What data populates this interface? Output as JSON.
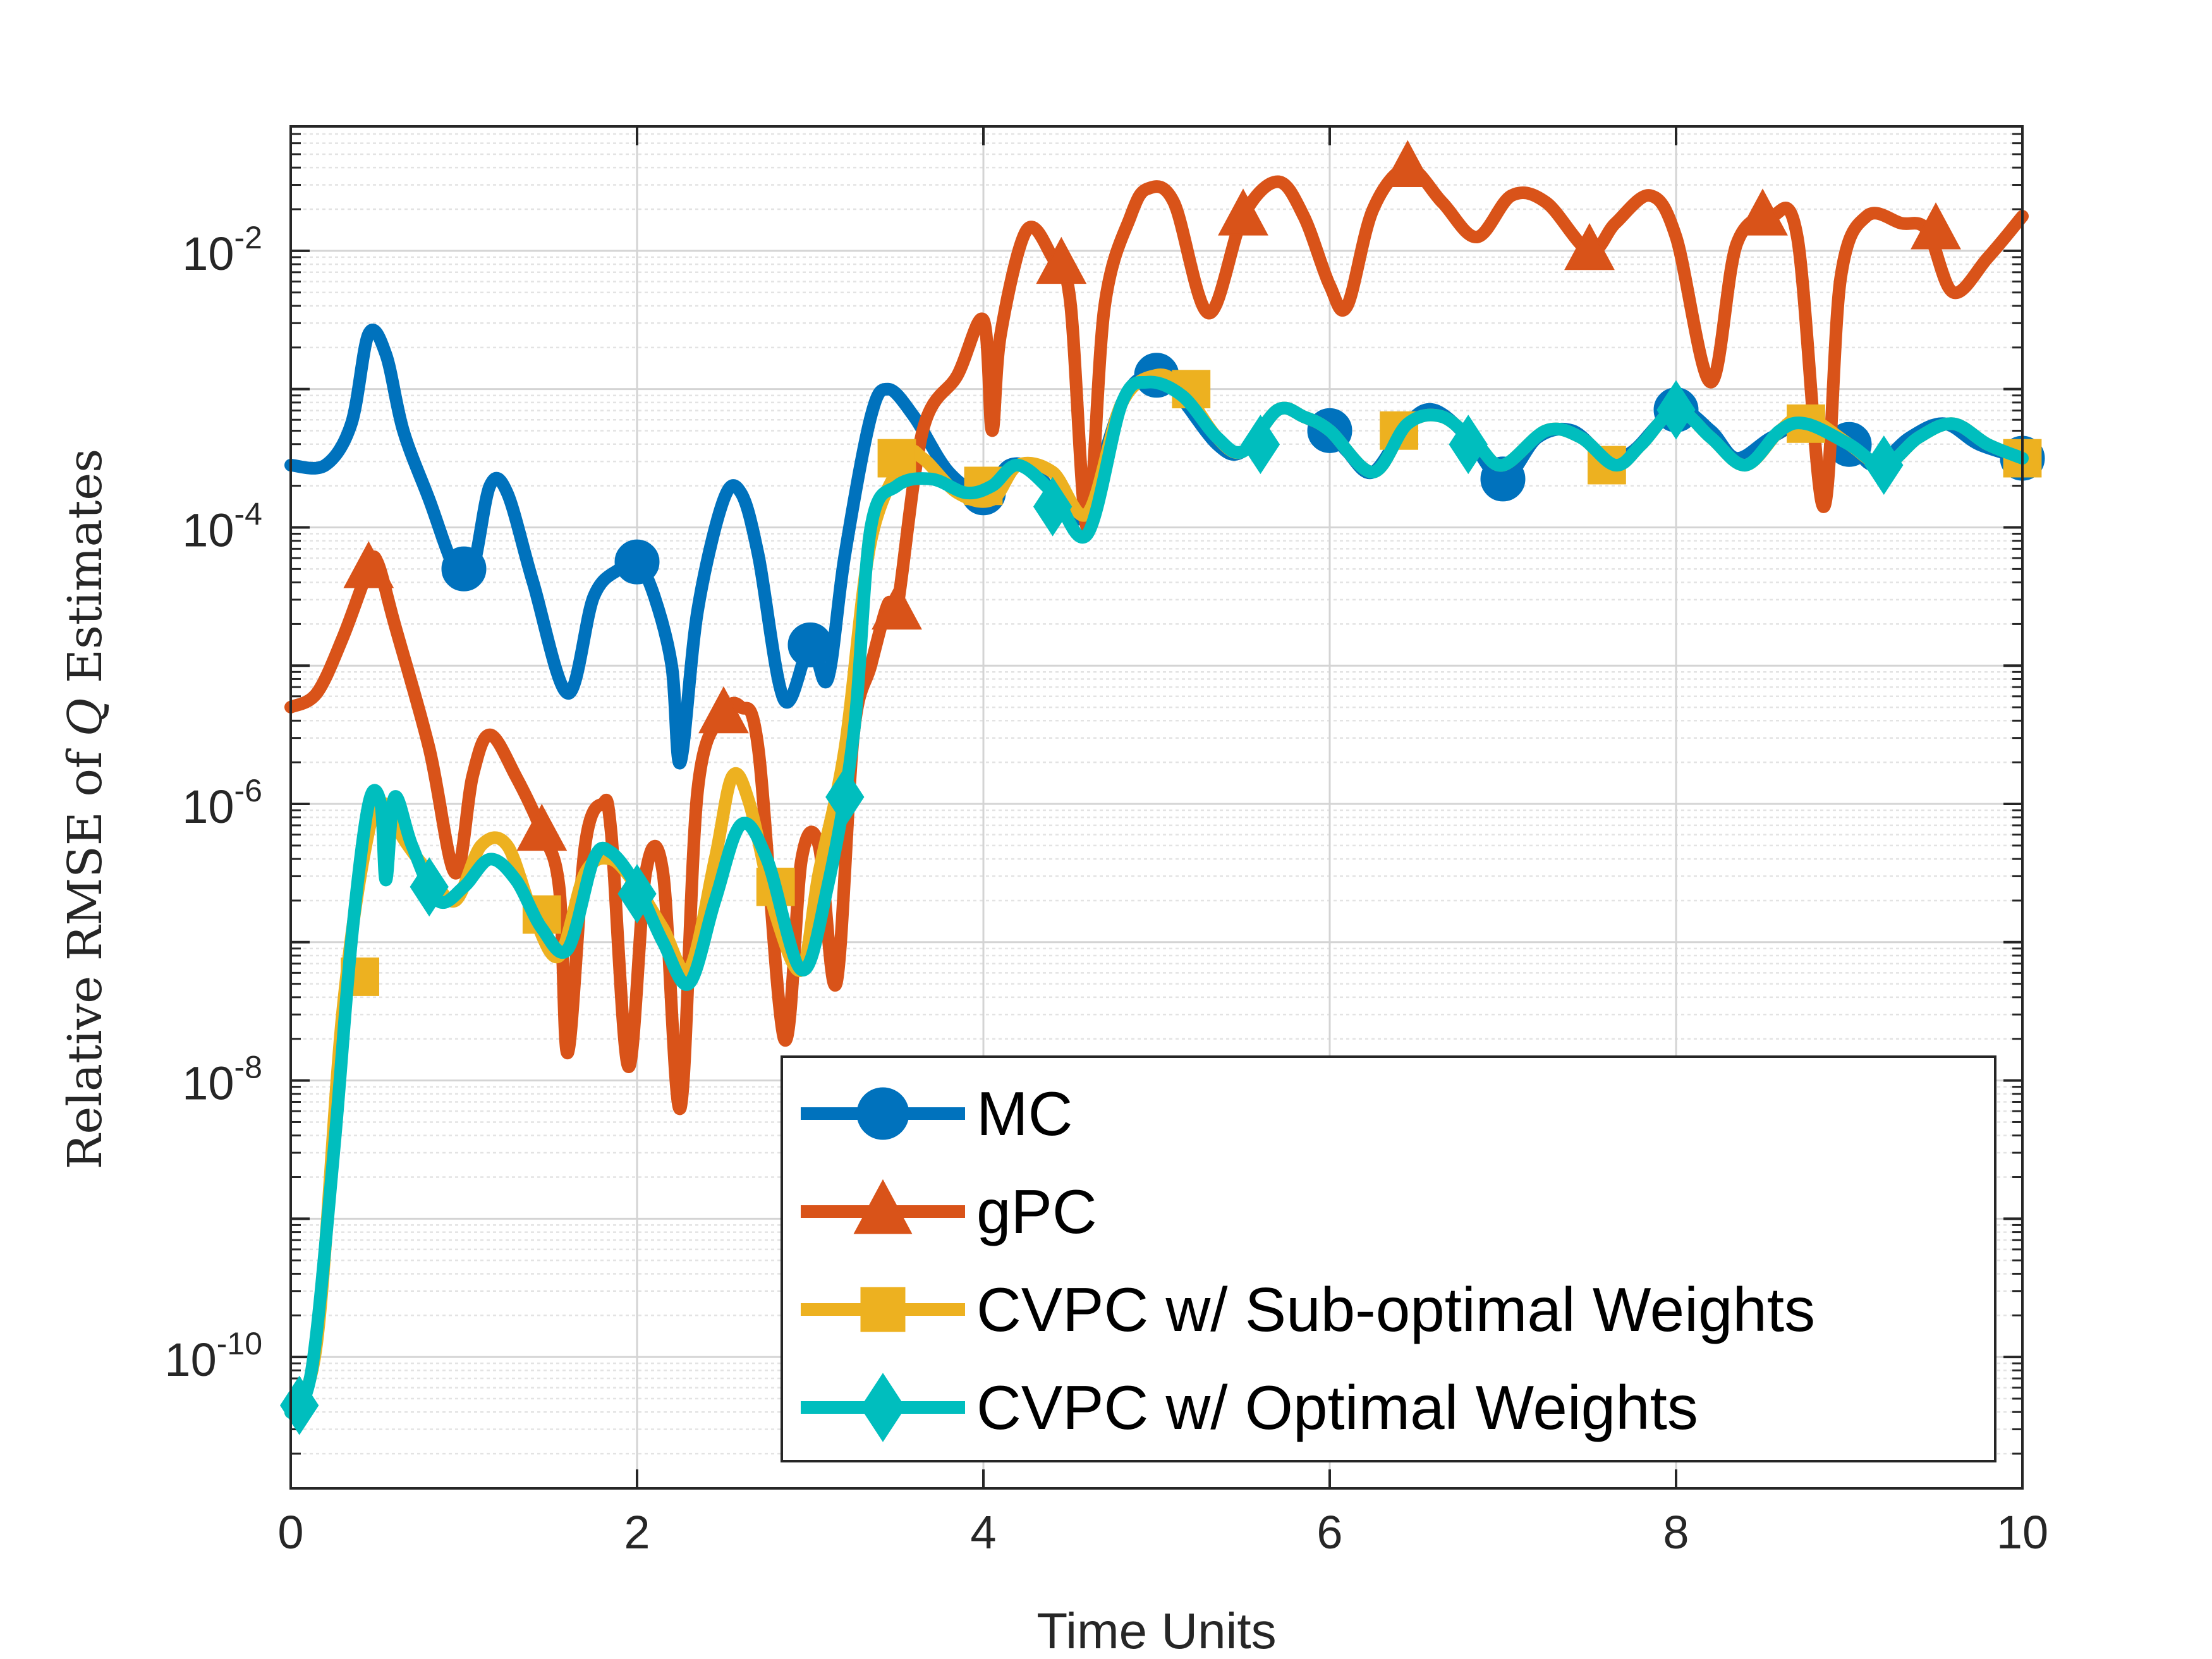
{
  "chart_data": {
    "type": "line",
    "xlabel": "Time Units",
    "ylabel": {
      "prefix": "Relative RMSE of ",
      "symbol": "Q",
      "suffix": " Estimates"
    },
    "x_ticks": [
      0,
      2,
      4,
      6,
      8,
      10
    ],
    "y_ticks": [
      {
        "base": "10",
        "exp": "-10",
        "value": 1e-10
      },
      {
        "base": "10",
        "exp": "-8",
        "value": 1e-08
      },
      {
        "base": "10",
        "exp": "-6",
        "value": 1e-06
      },
      {
        "base": "10",
        "exp": "-4",
        "value": 0.0001
      },
      {
        "base": "10",
        "exp": "-2",
        "value": 0.01
      }
    ],
    "xlim": [
      0,
      10
    ],
    "ylim_log10": [
      -10.95,
      -1.1
    ],
    "grid": true,
    "legend_position": "bottom-right",
    "series": [
      {
        "name": "MC",
        "color": "#0072BD",
        "marker": "circle",
        "points": [
          [
            0,
            -3.55
          ],
          [
            0.2,
            -3.55
          ],
          [
            0.35,
            -3.25
          ],
          [
            0.45,
            -2.6
          ],
          [
            0.55,
            -2.75
          ],
          [
            0.65,
            -3.3
          ],
          [
            0.8,
            -3.8
          ],
          [
            0.95,
            -4.3
          ],
          [
            1.05,
            -4.3
          ],
          [
            1.15,
            -3.7
          ],
          [
            1.25,
            -3.75
          ],
          [
            1.4,
            -4.4
          ],
          [
            1.6,
            -5.2
          ],
          [
            1.75,
            -4.5
          ],
          [
            1.9,
            -4.3
          ],
          [
            2.0,
            -4.25
          ],
          [
            2.1,
            -4.5
          ],
          [
            2.2,
            -5.0
          ],
          [
            2.25,
            -5.7
          ],
          [
            2.35,
            -4.6
          ],
          [
            2.5,
            -3.8
          ],
          [
            2.6,
            -3.75
          ],
          [
            2.7,
            -4.2
          ],
          [
            2.85,
            -5.25
          ],
          [
            3.0,
            -4.85
          ],
          [
            3.1,
            -5.1
          ],
          [
            3.2,
            -4.2
          ],
          [
            3.35,
            -3.2
          ],
          [
            3.45,
            -3.0
          ],
          [
            3.6,
            -3.2
          ],
          [
            3.8,
            -3.6
          ],
          [
            4.0,
            -3.75
          ],
          [
            4.15,
            -3.55
          ],
          [
            4.3,
            -3.6
          ],
          [
            4.5,
            -3.9
          ],
          [
            4.6,
            -3.85
          ],
          [
            4.8,
            -3.1
          ],
          [
            4.95,
            -2.9
          ],
          [
            5.1,
            -3.0
          ],
          [
            5.35,
            -3.4
          ],
          [
            5.5,
            -3.45
          ],
          [
            5.7,
            -3.15
          ],
          [
            5.85,
            -3.2
          ],
          [
            6.0,
            -3.3
          ],
          [
            6.1,
            -3.45
          ],
          [
            6.25,
            -3.6
          ],
          [
            6.45,
            -3.25
          ],
          [
            6.6,
            -3.15
          ],
          [
            6.8,
            -3.35
          ],
          [
            7.0,
            -3.65
          ],
          [
            7.2,
            -3.35
          ],
          [
            7.4,
            -3.3
          ],
          [
            7.6,
            -3.5
          ],
          [
            7.75,
            -3.45
          ],
          [
            8.0,
            -3.15
          ],
          [
            8.2,
            -3.3
          ],
          [
            8.35,
            -3.5
          ],
          [
            8.55,
            -3.35
          ],
          [
            8.75,
            -3.25
          ],
          [
            9.0,
            -3.4
          ],
          [
            9.15,
            -3.55
          ],
          [
            9.35,
            -3.35
          ],
          [
            9.55,
            -3.25
          ],
          [
            9.75,
            -3.4
          ],
          [
            10.0,
            -3.5
          ]
        ],
        "marker_points": [
          [
            1.0,
            -4.3
          ],
          [
            2.0,
            -4.25
          ],
          [
            3.0,
            -4.85
          ],
          [
            4.0,
            -3.75
          ],
          [
            5.0,
            -2.9
          ],
          [
            6.0,
            -3.3
          ],
          [
            7.0,
            -3.65
          ],
          [
            8.0,
            -3.15
          ],
          [
            9.0,
            -3.4
          ],
          [
            10.0,
            -3.5
          ]
        ]
      },
      {
        "name": "gPC",
        "color": "#D95319",
        "marker": "triangle",
        "points": [
          [
            0,
            -5.3
          ],
          [
            0.15,
            -5.2
          ],
          [
            0.3,
            -4.8
          ],
          [
            0.45,
            -4.3
          ],
          [
            0.5,
            -4.25
          ],
          [
            0.6,
            -4.7
          ],
          [
            0.8,
            -5.6
          ],
          [
            0.95,
            -6.5
          ],
          [
            1.05,
            -5.8
          ],
          [
            1.15,
            -5.5
          ],
          [
            1.3,
            -5.8
          ],
          [
            1.45,
            -6.2
          ],
          [
            1.55,
            -6.6
          ],
          [
            1.6,
            -7.8
          ],
          [
            1.7,
            -6.3
          ],
          [
            1.8,
            -6.0
          ],
          [
            1.85,
            -6.2
          ],
          [
            1.95,
            -7.9
          ],
          [
            2.05,
            -6.5
          ],
          [
            2.15,
            -6.5
          ],
          [
            2.25,
            -8.2
          ],
          [
            2.35,
            -5.9
          ],
          [
            2.5,
            -5.35
          ],
          [
            2.6,
            -5.3
          ],
          [
            2.7,
            -5.6
          ],
          [
            2.85,
            -7.7
          ],
          [
            2.95,
            -6.4
          ],
          [
            3.05,
            -6.3
          ],
          [
            3.15,
            -7.3
          ],
          [
            3.25,
            -5.5
          ],
          [
            3.35,
            -5.0
          ],
          [
            3.45,
            -4.55
          ],
          [
            3.5,
            -4.6
          ],
          [
            3.65,
            -3.3
          ],
          [
            3.85,
            -2.9
          ],
          [
            4.0,
            -2.5
          ],
          [
            4.05,
            -3.3
          ],
          [
            4.1,
            -2.6
          ],
          [
            4.25,
            -1.85
          ],
          [
            4.4,
            -2.05
          ],
          [
            4.5,
            -2.35
          ],
          [
            4.6,
            -4.0
          ],
          [
            4.7,
            -2.4
          ],
          [
            4.85,
            -1.75
          ],
          [
            4.95,
            -1.55
          ],
          [
            5.1,
            -1.65
          ],
          [
            5.3,
            -2.45
          ],
          [
            5.5,
            -1.75
          ],
          [
            5.7,
            -1.5
          ],
          [
            5.85,
            -1.75
          ],
          [
            6.0,
            -2.25
          ],
          [
            6.1,
            -2.4
          ],
          [
            6.25,
            -1.7
          ],
          [
            6.45,
            -1.4
          ],
          [
            6.65,
            -1.65
          ],
          [
            6.85,
            -1.9
          ],
          [
            7.05,
            -1.6
          ],
          [
            7.25,
            -1.65
          ],
          [
            7.5,
            -2.0
          ],
          [
            7.65,
            -1.8
          ],
          [
            7.85,
            -1.6
          ],
          [
            8.0,
            -1.9
          ],
          [
            8.2,
            -2.95
          ],
          [
            8.35,
            -1.95
          ],
          [
            8.55,
            -1.75
          ],
          [
            8.7,
            -1.9
          ],
          [
            8.85,
            -3.85
          ],
          [
            8.95,
            -2.2
          ],
          [
            9.1,
            -1.75
          ],
          [
            9.3,
            -1.8
          ],
          [
            9.45,
            -1.85
          ],
          [
            9.6,
            -2.3
          ],
          [
            9.8,
            -2.05
          ],
          [
            10.0,
            -1.75
          ]
        ],
        "marker_points": [
          [
            0.45,
            -4.3
          ],
          [
            1.45,
            -6.2
          ],
          [
            2.5,
            -5.35
          ],
          [
            3.5,
            -4.6
          ],
          [
            4.45,
            -2.1
          ],
          [
            5.5,
            -1.75
          ],
          [
            6.45,
            -1.4
          ],
          [
            7.5,
            -2.0
          ],
          [
            8.5,
            -1.75
          ],
          [
            9.5,
            -1.85
          ]
        ]
      },
      {
        "name": "CVPC w/ Sub-optimal Weights",
        "color": "#EDB120",
        "marker": "square",
        "points": [
          [
            0,
            -10.4
          ],
          [
            0.15,
            -9.9
          ],
          [
            0.3,
            -7.5
          ],
          [
            0.45,
            -6.2
          ],
          [
            0.55,
            -6.0
          ],
          [
            0.65,
            -6.25
          ],
          [
            0.8,
            -6.5
          ],
          [
            0.95,
            -6.7
          ],
          [
            1.1,
            -6.3
          ],
          [
            1.25,
            -6.3
          ],
          [
            1.4,
            -6.8
          ],
          [
            1.55,
            -7.1
          ],
          [
            1.7,
            -6.5
          ],
          [
            1.85,
            -6.4
          ],
          [
            2.0,
            -6.6
          ],
          [
            2.15,
            -6.9
          ],
          [
            2.3,
            -7.2
          ],
          [
            2.45,
            -6.4
          ],
          [
            2.55,
            -5.8
          ],
          [
            2.65,
            -6.0
          ],
          [
            2.8,
            -6.8
          ],
          [
            2.95,
            -7.2
          ],
          [
            3.05,
            -6.5
          ],
          [
            3.2,
            -5.6
          ],
          [
            3.35,
            -4.1
          ],
          [
            3.55,
            -3.5
          ],
          [
            3.65,
            -3.5
          ],
          [
            3.85,
            -3.75
          ],
          [
            4.05,
            -3.8
          ],
          [
            4.2,
            -3.55
          ],
          [
            4.4,
            -3.6
          ],
          [
            4.6,
            -3.9
          ],
          [
            4.8,
            -3.1
          ],
          [
            5.0,
            -2.9
          ],
          [
            5.15,
            -3.0
          ],
          [
            5.35,
            -3.35
          ],
          [
            5.5,
            -3.45
          ],
          [
            5.7,
            -3.15
          ],
          [
            5.85,
            -3.2
          ],
          [
            6.0,
            -3.3
          ],
          [
            6.25,
            -3.6
          ],
          [
            6.45,
            -3.25
          ],
          [
            6.65,
            -3.2
          ],
          [
            6.85,
            -3.4
          ],
          [
            7.0,
            -3.55
          ],
          [
            7.25,
            -3.3
          ],
          [
            7.45,
            -3.35
          ],
          [
            7.65,
            -3.55
          ],
          [
            7.8,
            -3.4
          ],
          [
            8.0,
            -3.15
          ],
          [
            8.2,
            -3.35
          ],
          [
            8.4,
            -3.55
          ],
          [
            8.6,
            -3.3
          ],
          [
            8.75,
            -3.2
          ],
          [
            9.0,
            -3.4
          ],
          [
            9.2,
            -3.55
          ],
          [
            9.4,
            -3.35
          ],
          [
            9.6,
            -3.25
          ],
          [
            9.8,
            -3.4
          ],
          [
            10.0,
            -3.5
          ]
        ],
        "marker_points": [
          [
            0.4,
            -7.25
          ],
          [
            1.45,
            -6.8
          ],
          [
            2.8,
            -6.6
          ],
          [
            3.5,
            -3.5
          ],
          [
            4.0,
            -3.7
          ],
          [
            5.2,
            -3.0
          ],
          [
            6.4,
            -3.3
          ],
          [
            7.6,
            -3.55
          ],
          [
            8.75,
            -3.25
          ],
          [
            10.0,
            -3.5
          ]
        ]
      },
      {
        "name": "CVPC w/ Optimal Weights",
        "color": "#00BEBE",
        "marker": "diamond",
        "points": [
          [
            0,
            -10.4
          ],
          [
            0.12,
            -10.1
          ],
          [
            0.25,
            -8.5
          ],
          [
            0.35,
            -7.0
          ],
          [
            0.45,
            -6.0
          ],
          [
            0.52,
            -6.0
          ],
          [
            0.55,
            -6.55
          ],
          [
            0.6,
            -5.95
          ],
          [
            0.7,
            -6.3
          ],
          [
            0.85,
            -6.7
          ],
          [
            1.0,
            -6.6
          ],
          [
            1.15,
            -6.4
          ],
          [
            1.3,
            -6.55
          ],
          [
            1.45,
            -6.9
          ],
          [
            1.6,
            -7.05
          ],
          [
            1.75,
            -6.4
          ],
          [
            1.85,
            -6.35
          ],
          [
            2.0,
            -6.6
          ],
          [
            2.15,
            -7.0
          ],
          [
            2.3,
            -7.3
          ],
          [
            2.45,
            -6.7
          ],
          [
            2.6,
            -6.15
          ],
          [
            2.75,
            -6.4
          ],
          [
            2.95,
            -7.2
          ],
          [
            3.1,
            -6.6
          ],
          [
            3.25,
            -5.5
          ],
          [
            3.35,
            -4.0
          ],
          [
            3.5,
            -3.7
          ],
          [
            3.7,
            -3.65
          ],
          [
            3.9,
            -3.75
          ],
          [
            4.05,
            -3.7
          ],
          [
            4.2,
            -3.55
          ],
          [
            4.4,
            -3.75
          ],
          [
            4.6,
            -4.05
          ],
          [
            4.8,
            -3.1
          ],
          [
            4.95,
            -2.95
          ],
          [
            5.15,
            -3.05
          ],
          [
            5.35,
            -3.35
          ],
          [
            5.5,
            -3.45
          ],
          [
            5.7,
            -3.15
          ],
          [
            5.85,
            -3.2
          ],
          [
            6.0,
            -3.3
          ],
          [
            6.25,
            -3.6
          ],
          [
            6.45,
            -3.25
          ],
          [
            6.65,
            -3.2
          ],
          [
            6.85,
            -3.4
          ],
          [
            7.0,
            -3.55
          ],
          [
            7.25,
            -3.3
          ],
          [
            7.45,
            -3.35
          ],
          [
            7.65,
            -3.55
          ],
          [
            7.8,
            -3.4
          ],
          [
            8.0,
            -3.15
          ],
          [
            8.2,
            -3.35
          ],
          [
            8.4,
            -3.55
          ],
          [
            8.6,
            -3.3
          ],
          [
            8.75,
            -3.25
          ],
          [
            9.0,
            -3.4
          ],
          [
            9.2,
            -3.55
          ],
          [
            9.4,
            -3.35
          ],
          [
            9.6,
            -3.25
          ],
          [
            9.8,
            -3.4
          ],
          [
            10.0,
            -3.5
          ]
        ],
        "marker_points": [
          [
            0.05,
            -10.35
          ],
          [
            0.8,
            -6.6
          ],
          [
            2.0,
            -6.65
          ],
          [
            3.2,
            -5.95
          ],
          [
            4.4,
            -3.85
          ],
          [
            5.6,
            -3.4
          ],
          [
            6.8,
            -3.4
          ],
          [
            8.0,
            -3.15
          ],
          [
            9.2,
            -3.55
          ]
        ]
      }
    ]
  }
}
